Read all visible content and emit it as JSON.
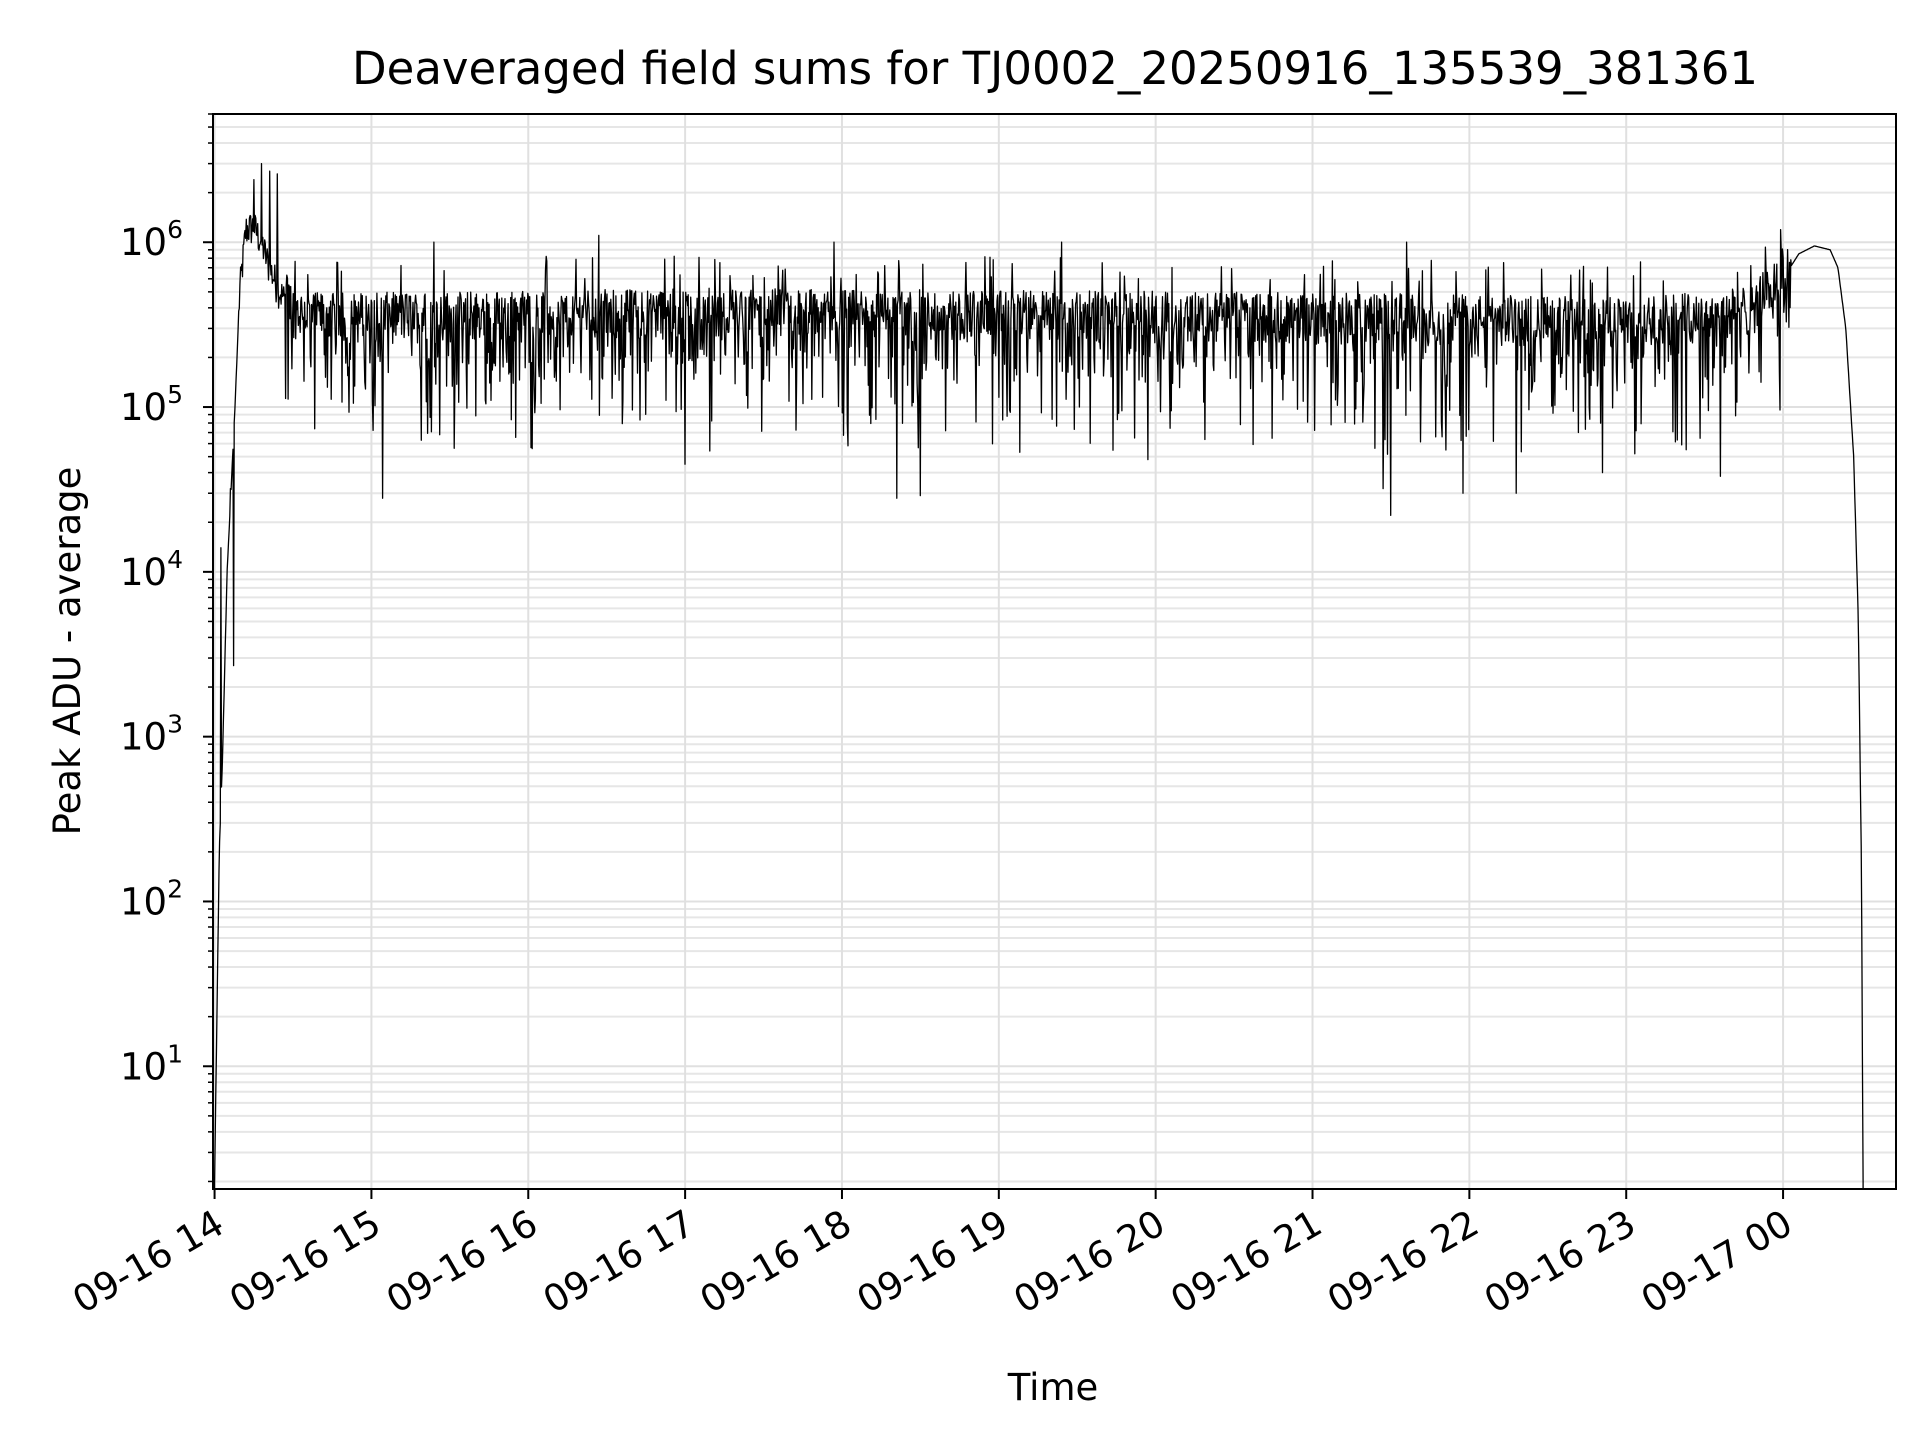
{
  "chart_data": {
    "type": "line",
    "title": "Deaveraged field sums for TJ0002_20250916_135539_381361",
    "xlabel": "Time",
    "ylabel": "Peak ADU - average",
    "yscale": "log",
    "ylim": [
      1.8,
      6000000
    ],
    "xlim_hours": [
      13.99,
      24.72
    ],
    "grid": true,
    "x_ticks": [
      {
        "hour": 14,
        "label": "09-16 14"
      },
      {
        "hour": 15,
        "label": "09-16 15"
      },
      {
        "hour": 16,
        "label": "09-16 16"
      },
      {
        "hour": 17,
        "label": "09-16 17"
      },
      {
        "hour": 18,
        "label": "09-16 18"
      },
      {
        "hour": 19,
        "label": "09-16 19"
      },
      {
        "hour": 20,
        "label": "09-16 20"
      },
      {
        "hour": 21,
        "label": "09-16 21"
      },
      {
        "hour": 22,
        "label": "09-16 22"
      },
      {
        "hour": 23,
        "label": "09-16 23"
      },
      {
        "hour": 24,
        "label": "09-17 00"
      }
    ],
    "y_ticks": [
      {
        "value": 10,
        "base": "10",
        "exp": "1"
      },
      {
        "value": 100,
        "base": "10",
        "exp": "2"
      },
      {
        "value": 1000,
        "base": "10",
        "exp": "3"
      },
      {
        "value": 10000,
        "base": "10",
        "exp": "4"
      },
      {
        "value": 100000,
        "base": "10",
        "exp": "5"
      },
      {
        "value": 1000000,
        "base": "10",
        "exp": "6"
      }
    ],
    "series": [
      {
        "name": "deaveraged field sum",
        "color": "#000000",
        "envelope": [
          [
            14.0,
            2
          ],
          [
            14.03,
            200
          ],
          [
            14.05,
            700
          ],
          [
            14.08,
            10000
          ],
          [
            14.1,
            25000
          ],
          [
            14.13,
            100000
          ],
          [
            14.16,
            500000
          ],
          [
            14.2,
            1200000
          ],
          [
            14.25,
            1250000
          ],
          [
            14.3,
            1000000
          ],
          [
            14.35,
            700000
          ],
          [
            14.42,
            500000
          ],
          [
            14.5,
            350000
          ],
          [
            14.6,
            320000
          ],
          [
            15.0,
            320000
          ],
          [
            17.0,
            340000
          ],
          [
            19.0,
            330000
          ],
          [
            21.0,
            320000
          ],
          [
            23.0,
            300000
          ],
          [
            23.8,
            350000
          ],
          [
            24.0,
            600000
          ],
          [
            24.1,
            850000
          ],
          [
            24.2,
            950000
          ],
          [
            24.3,
            900000
          ],
          [
            24.35,
            700000
          ],
          [
            24.4,
            300000
          ],
          [
            24.45,
            50000
          ],
          [
            24.48,
            5000
          ],
          [
            24.5,
            150
          ],
          [
            24.51,
            2
          ]
        ],
        "noise_hours": [
          14.45,
          24.05
        ],
        "typical_dip_floor": 50000,
        "deep_dips": [
          {
            "hour": 15.07,
            "value": 28000
          },
          {
            "hour": 17.0,
            "value": 45000
          },
          {
            "hour": 18.35,
            "value": 28000
          },
          {
            "hour": 18.5,
            "value": 29000
          },
          {
            "hour": 19.95,
            "value": 48000
          },
          {
            "hour": 21.45,
            "value": 32000
          },
          {
            "hour": 21.5,
            "value": 22000
          },
          {
            "hour": 21.96,
            "value": 30000
          },
          {
            "hour": 22.3,
            "value": 30000
          },
          {
            "hour": 22.85,
            "value": 40000
          },
          {
            "hour": 23.6,
            "value": 38000
          }
        ],
        "spikes": [
          {
            "hour": 14.3,
            "value": 3000000
          },
          {
            "hour": 14.35,
            "value": 2700000
          },
          {
            "hour": 14.4,
            "value": 2600000
          },
          {
            "hour": 14.25,
            "value": 2400000
          },
          {
            "hour": 15.4,
            "value": 1000000
          },
          {
            "hour": 16.45,
            "value": 1100000
          },
          {
            "hour": 17.95,
            "value": 1000000
          },
          {
            "hour": 19.4,
            "value": 1000000
          },
          {
            "hour": 21.6,
            "value": 1000000
          }
        ],
        "early_bursts": [
          {
            "hour": 14.04,
            "value": 14000
          },
          {
            "hour": 14.1,
            "value": 32000
          },
          {
            "hour": 14.12,
            "value": 2700
          }
        ]
      }
    ]
  }
}
